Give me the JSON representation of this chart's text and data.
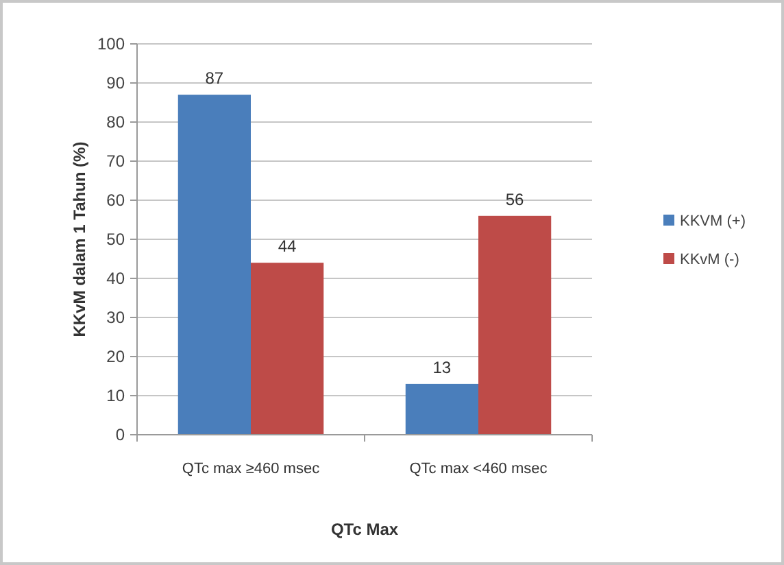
{
  "chart_data": {
    "type": "bar",
    "xlabel": "QTc Max",
    "ylabel": "KKvM dalam 1 Tahun (%)",
    "categories": [
      "QTc max ≥460 msec",
      "QTc max <460 msec"
    ],
    "series": [
      {
        "name": "KKVM (+)",
        "color": "#4a7ebb",
        "values": [
          87,
          13
        ]
      },
      {
        "name": "KKvM (-)",
        "color": "#be4b48",
        "values": [
          44,
          56
        ]
      }
    ],
    "ylim": [
      0,
      100
    ],
    "yticks": [
      0,
      10,
      20,
      30,
      40,
      50,
      60,
      70,
      80,
      90,
      100
    ],
    "grid": "y",
    "legend": "right",
    "data_labels": true
  }
}
